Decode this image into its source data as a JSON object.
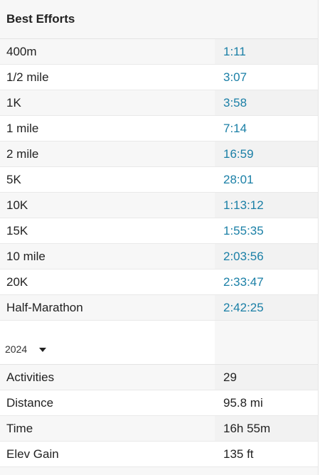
{
  "best_efforts": {
    "title": "Best Efforts",
    "rows": [
      {
        "label": "400m",
        "value": "1:11"
      },
      {
        "label": "1/2 mile",
        "value": "3:07"
      },
      {
        "label": "1K",
        "value": "3:58"
      },
      {
        "label": "1 mile",
        "value": "7:14"
      },
      {
        "label": "2 mile",
        "value": "16:59"
      },
      {
        "label": "5K",
        "value": "28:01"
      },
      {
        "label": "10K",
        "value": "1:13:12"
      },
      {
        "label": "15K",
        "value": "1:55:35"
      },
      {
        "label": "10 mile",
        "value": "2:03:56"
      },
      {
        "label": "20K",
        "value": "2:33:47"
      },
      {
        "label": "Half-Marathon",
        "value": "2:42:25"
      }
    ]
  },
  "year_stats": {
    "selected_year": "2024",
    "rows": [
      {
        "label": "Activities",
        "value": "29"
      },
      {
        "label": "Distance",
        "value": "95.8 mi"
      },
      {
        "label": "Time",
        "value": "16h 55m"
      },
      {
        "label": "Elev Gain",
        "value": "135 ft"
      }
    ]
  },
  "colors": {
    "link": "#1a7fa6"
  }
}
